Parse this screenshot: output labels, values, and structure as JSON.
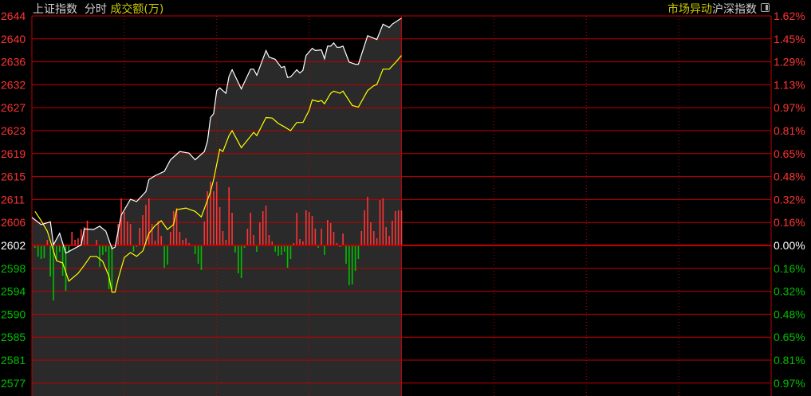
{
  "header": {
    "index_name": "上证指数",
    "mode": "分时",
    "volume_label": "成交额(万)",
    "market_alert": "市场异动",
    "compare_index": "沪深指数"
  },
  "colors": {
    "price_line": "#ffffff",
    "avg_line": "#ffff00",
    "grid": "#c00000",
    "up": "#ff3333",
    "down": "#00c000",
    "flat": "#ffffff",
    "area": "#2a2a2a"
  },
  "chart_data": {
    "type": "line",
    "prev_close": 2602.2,
    "session_minutes": 240,
    "ylim": [
      2577,
      2644
    ],
    "y_ticks": [
      "2644",
      "2640",
      "2636",
      "2632",
      "2627",
      "2623",
      "2619",
      "2615",
      "2611",
      "2606",
      "2602",
      "2598",
      "2594",
      "2590",
      "2585",
      "2581",
      "2577"
    ],
    "pct_ticks": [
      "1.62%",
      "1.45%",
      "1.29%",
      "1.13%",
      "0.97%",
      "0.81%",
      "0.65%",
      "0.48%",
      "0.32%",
      "0.16%",
      "0.00%",
      "0.16%",
      "0.32%",
      "0.48%",
      "0.65%",
      "0.81%",
      "0.97%"
    ],
    "grid": true,
    "price": [
      [
        0,
        2607.3
      ],
      [
        3,
        2606.0
      ],
      [
        6,
        2606.5
      ],
      [
        7,
        2602.3
      ],
      [
        9,
        2604.4
      ],
      [
        11,
        2600.8
      ],
      [
        16,
        2602.3
      ],
      [
        17,
        2605.2
      ],
      [
        20,
        2605.1
      ],
      [
        22,
        2605.7
      ],
      [
        24,
        2604.8
      ],
      [
        26,
        2601.6
      ],
      [
        27,
        2601.9
      ],
      [
        29,
        2607.7
      ],
      [
        32,
        2610.6
      ],
      [
        34,
        2610.2
      ],
      [
        37,
        2612.0
      ],
      [
        38,
        2614.2
      ],
      [
        40,
        2614.9
      ],
      [
        43,
        2615.7
      ],
      [
        45,
        2617.8
      ],
      [
        48,
        2619.3
      ],
      [
        51,
        2619.0
      ],
      [
        53,
        2617.8
      ],
      [
        56,
        2619.3
      ],
      [
        57,
        2621.2
      ],
      [
        58,
        2625.5
      ],
      [
        59,
        2626.2
      ],
      [
        60,
        2630.4
      ],
      [
        61,
        2630.9
      ],
      [
        63,
        2629.9
      ],
      [
        64,
        2633.0
      ],
      [
        65,
        2634.2
      ],
      [
        68,
        2630.7
      ],
      [
        71,
        2634.3
      ],
      [
        72,
        2634.3
      ],
      [
        73,
        2633.2
      ],
      [
        76,
        2637.7
      ],
      [
        77,
        2636.5
      ],
      [
        79,
        2636.1
      ],
      [
        81,
        2634.6
      ],
      [
        82,
        2634.8
      ],
      [
        83,
        2632.8
      ],
      [
        84,
        2632.9
      ],
      [
        86,
        2634.2
      ],
      [
        87,
        2633.6
      ],
      [
        88,
        2634.1
      ],
      [
        89,
        2636.8
      ],
      [
        91,
        2638.1
      ],
      [
        92,
        2637.7
      ],
      [
        94,
        2637.8
      ],
      [
        95,
        2636.2
      ],
      [
        96,
        2638.5
      ],
      [
        97,
        2638.5
      ],
      [
        98,
        2639.1
      ],
      [
        99,
        2638.3
      ],
      [
        100,
        2638.3
      ],
      [
        101,
        2638.5
      ],
      [
        103,
        2635.6
      ],
      [
        105,
        2635.2
      ],
      [
        106,
        2635.2
      ],
      [
        109,
        2640.4
      ],
      [
        112,
        2639.7
      ],
      [
        114,
        2642.5
      ],
      [
        116,
        2641.9
      ],
      [
        117,
        2642.5
      ],
      [
        120,
        2643.6
      ]
    ],
    "average": [
      [
        1,
        2608.4
      ],
      [
        3,
        2606.7
      ],
      [
        5,
        2604.8
      ],
      [
        8,
        2599.4
      ],
      [
        10,
        2599.0
      ],
      [
        12,
        2595.7
      ],
      [
        15,
        2597.1
      ],
      [
        17,
        2598.6
      ],
      [
        19,
        2600.2
      ],
      [
        21,
        2600.2
      ],
      [
        23,
        2599.3
      ],
      [
        25,
        2596.6
      ],
      [
        26,
        2593.7
      ],
      [
        27,
        2593.7
      ],
      [
        28,
        2596.1
      ],
      [
        30,
        2600.0
      ],
      [
        32,
        2600.9
      ],
      [
        34,
        2600.2
      ],
      [
        36,
        2601.2
      ],
      [
        38,
        2604.4
      ],
      [
        40,
        2605.8
      ],
      [
        42,
        2606.7
      ],
      [
        44,
        2605.1
      ],
      [
        46,
        2606.0
      ],
      [
        47,
        2608.7
      ],
      [
        50,
        2609.0
      ],
      [
        53,
        2608.4
      ],
      [
        55,
        2607.4
      ],
      [
        56,
        2608.9
      ],
      [
        58,
        2612.0
      ],
      [
        59,
        2614.2
      ],
      [
        61,
        2619.7
      ],
      [
        62,
        2619.3
      ],
      [
        64,
        2622.2
      ],
      [
        65,
        2623.1
      ],
      [
        68,
        2620.0
      ],
      [
        72,
        2622.8
      ],
      [
        73,
        2622.2
      ],
      [
        76,
        2625.5
      ],
      [
        78,
        2625.4
      ],
      [
        80,
        2624.4
      ],
      [
        82,
        2623.8
      ],
      [
        84,
        2623.1
      ],
      [
        86,
        2624.6
      ],
      [
        88,
        2624.6
      ],
      [
        90,
        2626.8
      ],
      [
        91,
        2628.7
      ],
      [
        93,
        2628.4
      ],
      [
        94,
        2628.6
      ],
      [
        95,
        2628.0
      ],
      [
        97,
        2629.9
      ],
      [
        98,
        2630.3
      ],
      [
        100,
        2629.9
      ],
      [
        101,
        2630.3
      ],
      [
        104,
        2627.7
      ],
      [
        106,
        2627.4
      ],
      [
        109,
        2630.4
      ],
      [
        111,
        2631.3
      ],
      [
        112,
        2631.5
      ],
      [
        114,
        2634.3
      ],
      [
        116,
        2634.3
      ],
      [
        118,
        2635.5
      ],
      [
        120,
        2636.8
      ]
    ],
    "volume_bars": [
      [
        1,
        -3
      ],
      [
        2,
        -14
      ],
      [
        3,
        -17
      ],
      [
        4,
        -16
      ],
      [
        5,
        7
      ],
      [
        6,
        -39
      ],
      [
        7,
        -69
      ],
      [
        8,
        -18
      ],
      [
        9,
        -8
      ],
      [
        10,
        -38
      ],
      [
        11,
        -57
      ],
      [
        12,
        -9
      ],
      [
        13,
        17
      ],
      [
        14,
        7
      ],
      [
        15,
        9
      ],
      [
        16,
        20
      ],
      [
        17,
        23
      ],
      [
        18,
        31
      ],
      [
        21,
        7
      ],
      [
        22,
        -27
      ],
      [
        23,
        -12
      ],
      [
        24,
        -8
      ],
      [
        25,
        -55
      ],
      [
        26,
        -55
      ],
      [
        28,
        27
      ],
      [
        29,
        59
      ],
      [
        30,
        42
      ],
      [
        31,
        30
      ],
      [
        32,
        27
      ],
      [
        33,
        -8
      ],
      [
        34,
        -2
      ],
      [
        35,
        22
      ],
      [
        36,
        38
      ],
      [
        37,
        51
      ],
      [
        38,
        59
      ],
      [
        39,
        27
      ],
      [
        40,
        6
      ],
      [
        41,
        31
      ],
      [
        42,
        12
      ],
      [
        43,
        -28
      ],
      [
        44,
        -24
      ],
      [
        45,
        17
      ],
      [
        46,
        43
      ],
      [
        47,
        47
      ],
      [
        48,
        17
      ],
      [
        49,
        7
      ],
      [
        50,
        9
      ],
      [
        51,
        3
      ],
      [
        53,
        -11
      ],
      [
        54,
        -23
      ],
      [
        55,
        -31
      ],
      [
        56,
        30
      ],
      [
        57,
        68
      ],
      [
        58,
        80
      ],
      [
        59,
        68
      ],
      [
        60,
        80
      ],
      [
        61,
        48
      ],
      [
        62,
        18
      ],
      [
        63,
        7
      ],
      [
        64,
        73
      ],
      [
        65,
        41
      ],
      [
        66,
        -9
      ],
      [
        67,
        -35
      ],
      [
        68,
        -41
      ],
      [
        69,
        -3
      ],
      [
        70,
        21
      ],
      [
        71,
        41
      ],
      [
        72,
        13
      ],
      [
        73,
        -8
      ],
      [
        74,
        29
      ],
      [
        75,
        43
      ],
      [
        76,
        50
      ],
      [
        77,
        13
      ],
      [
        78,
        5
      ],
      [
        79,
        -8
      ],
      [
        80,
        -13
      ],
      [
        81,
        -12
      ],
      [
        82,
        -8
      ],
      [
        83,
        -28
      ],
      [
        84,
        -17
      ],
      [
        85,
        3
      ],
      [
        86,
        41
      ],
      [
        87,
        8
      ],
      [
        88,
        5
      ],
      [
        89,
        44
      ],
      [
        90,
        42
      ],
      [
        91,
        37
      ],
      [
        92,
        21
      ],
      [
        93,
        -3
      ],
      [
        94,
        21
      ],
      [
        95,
        -12
      ],
      [
        96,
        32
      ],
      [
        97,
        28
      ],
      [
        98,
        17
      ],
      [
        99,
        3
      ],
      [
        100,
        -2
      ],
      [
        101,
        15
      ],
      [
        102,
        -23
      ],
      [
        103,
        -50
      ],
      [
        104,
        -49
      ],
      [
        105,
        -32
      ],
      [
        106,
        -17
      ],
      [
        107,
        18
      ],
      [
        108,
        44
      ],
      [
        109,
        61
      ],
      [
        110,
        29
      ],
      [
        111,
        18
      ],
      [
        112,
        9
      ],
      [
        113,
        57
      ],
      [
        114,
        59
      ],
      [
        115,
        23
      ],
      [
        116,
        12
      ],
      [
        117,
        31
      ],
      [
        118,
        43
      ],
      [
        119,
        44
      ],
      [
        120,
        44
      ]
    ]
  }
}
